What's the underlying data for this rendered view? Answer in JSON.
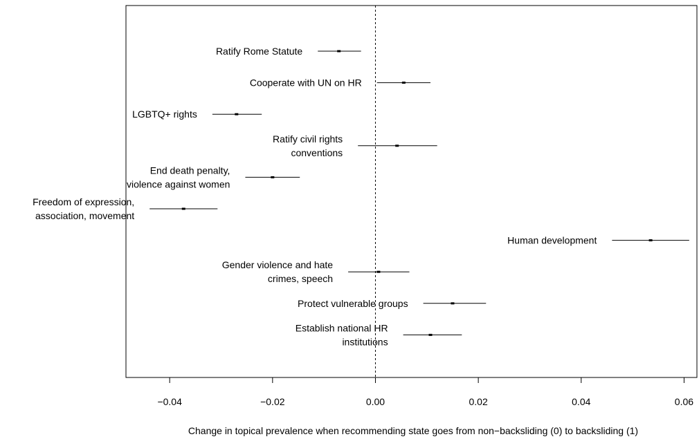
{
  "chart_data": {
    "type": "scatter",
    "subtype": "coefficient-plot-with-confidence-intervals",
    "title": "",
    "xlabel": "Change in topical prevalence when recommending state goes from non−backsliding (0) to backsliding (1)",
    "ylabel": "",
    "xlim": [
      -0.0485,
      0.0625
    ],
    "xticks": [
      -0.04,
      -0.02,
      0.0,
      0.02,
      0.04,
      0.06
    ],
    "xtick_labels": [
      "−0.04",
      "−0.02",
      "0.00",
      "0.02",
      "0.04",
      "0.06"
    ],
    "reference_line": 0,
    "grid": false,
    "legend": "none",
    "points": [
      {
        "label": [
          "Ratify Rome Statute"
        ],
        "estimate": -0.0071,
        "ci": [
          -0.0112,
          -0.0028
        ]
      },
      {
        "label": [
          "Cooperate with UN on HR"
        ],
        "estimate": 0.0055,
        "ci": [
          0.0003,
          0.0107
        ]
      },
      {
        "label": [
          "LGBTQ+ rights"
        ],
        "estimate": -0.027,
        "ci": [
          -0.0317,
          -0.0221
        ]
      },
      {
        "label": [
          "Ratify civil rights",
          "conventions"
        ],
        "estimate": 0.0042,
        "ci": [
          -0.0034,
          0.012
        ]
      },
      {
        "label": [
          "End death penalty,",
          "violence against women"
        ],
        "estimate": -0.02,
        "ci": [
          -0.0253,
          -0.0147
        ]
      },
      {
        "label": [
          "Freedom of expression,",
          "association, movement"
        ],
        "estimate": -0.0373,
        "ci": [
          -0.0439,
          -0.0307
        ]
      },
      {
        "label": [
          "Human development"
        ],
        "estimate": 0.0535,
        "ci": [
          0.046,
          0.061
        ]
      },
      {
        "label": [
          "Gender violence and hate",
          "crimes, speech"
        ],
        "estimate": 0.0006,
        "ci": [
          -0.0053,
          0.0066
        ]
      },
      {
        "label": [
          "Protect vulnerable groups"
        ],
        "estimate": 0.015,
        "ci": [
          0.0093,
          0.0215
        ]
      },
      {
        "label": [
          "Establish national HR",
          "institutions"
        ],
        "estimate": 0.0107,
        "ci": [
          0.0054,
          0.0168
        ]
      }
    ]
  }
}
